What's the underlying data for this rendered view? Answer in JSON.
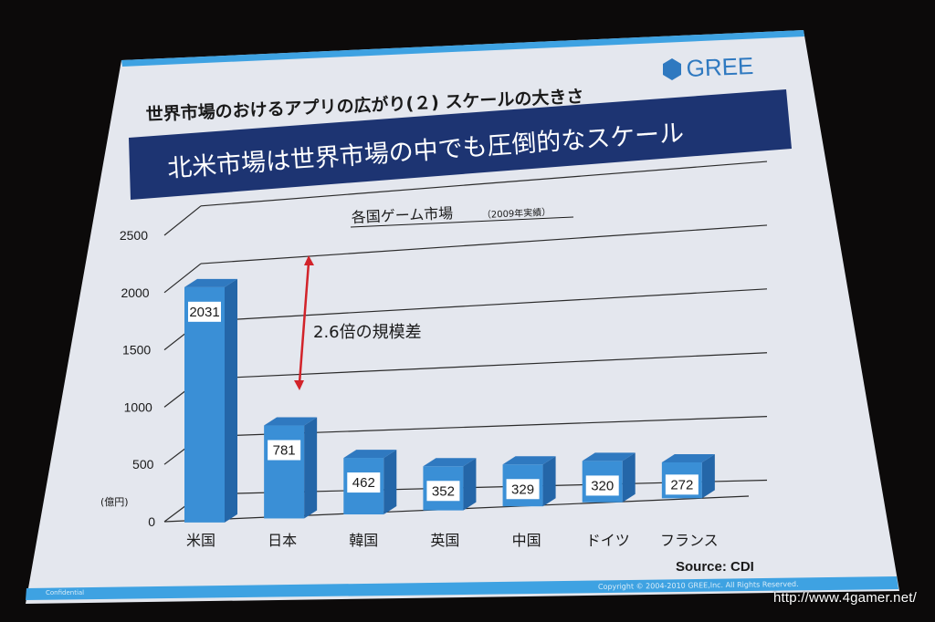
{
  "slide": {
    "header_title": "世界市場のおけるアプリの広がり(２) スケールの大きさ",
    "logo_text": "GREE",
    "banner_text": "北米市場は世界市場の中でも圧倒的なスケール",
    "confidential_text": "Confidential",
    "copyright_text": "Copyright © 2004-2010 GREE,Inc. All Rights Reserved.",
    "colors": {
      "slide_bg": "#e4e7ee",
      "banner_bg": "#1d3472",
      "bar_front": "#3a8fd6",
      "bar_side": "#2466a8",
      "bar_top": "#2f79c0",
      "arrow": "#d2232a",
      "footer_bar": "#3ea2e2"
    }
  },
  "chart_data": {
    "type": "bar",
    "title": "各国ゲーム市場",
    "subtitle": "（2009年実績）",
    "unit_label": "(億円)",
    "categories": [
      "米国",
      "日本",
      "韓国",
      "英国",
      "中国",
      "ドイツ",
      "フランス"
    ],
    "values": [
      2031,
      781,
      462,
      352,
      329,
      320,
      272
    ],
    "y_ticks": [
      0,
      500,
      1000,
      1500,
      2000,
      2500
    ],
    "ylim": [
      0,
      2500
    ],
    "grid": true,
    "annotation": "2.6倍の規模差",
    "source": "Source: CDI"
  },
  "watermark": "http://www.4gamer.net/"
}
